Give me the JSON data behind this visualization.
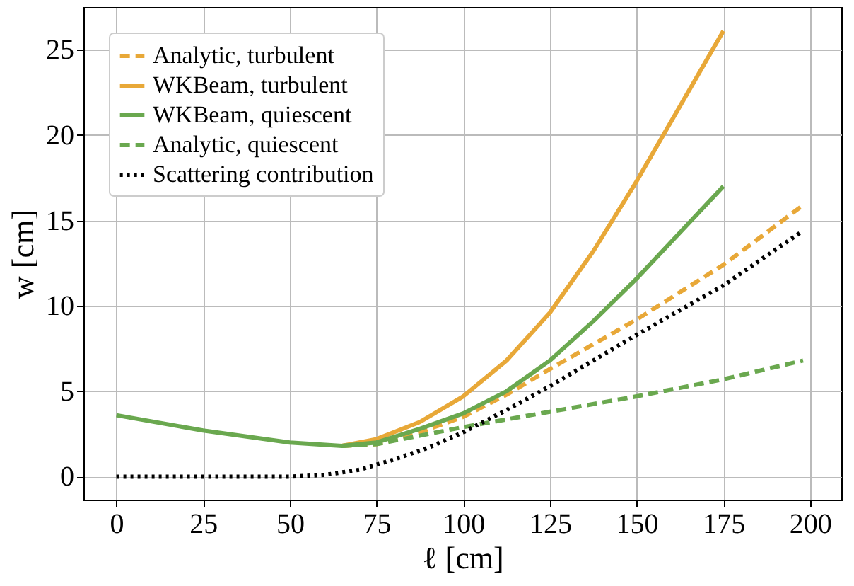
{
  "chart_data": {
    "type": "line",
    "xlabel": "ℓ [cm]",
    "ylabel": "w [cm]",
    "xlim": [
      -9.5,
      209
    ],
    "ylim": [
      -1.35,
      27.5
    ],
    "xticks": [
      0,
      25,
      50,
      75,
      100,
      125,
      150,
      175,
      200
    ],
    "yticks": [
      0,
      5,
      10,
      15,
      20,
      25
    ],
    "grid": true,
    "legend": "top left",
    "marker": "none",
    "series": [
      {
        "name": "Analytic, turbulent",
        "color": "#e8a838",
        "line_style": "dashed",
        "x": [
          65,
          75,
          87.5,
          100,
          112.5,
          125,
          150,
          175,
          198
        ],
        "values": [
          1.8,
          1.9,
          2.6,
          3.5,
          4.8,
          6.3,
          9.2,
          12.4,
          15.9
        ]
      },
      {
        "name": "WKBeam, turbulent",
        "color": "#e8a838",
        "line_style": "solid",
        "x": [
          65,
          75,
          87.5,
          100,
          112.5,
          125,
          137.5,
          150,
          162.5,
          175
        ],
        "values": [
          1.8,
          2.2,
          3.2,
          4.7,
          6.8,
          9.6,
          13.2,
          17.3,
          21.7,
          26.1
        ]
      },
      {
        "name": "WKBeam, quiescent",
        "color": "#6aa84f",
        "line_style": "solid",
        "x": [
          0,
          25,
          50,
          65,
          75,
          87.5,
          100,
          112.5,
          125,
          137.5,
          150,
          162.5,
          175
        ],
        "values": [
          3.6,
          2.7,
          2.0,
          1.8,
          2.0,
          2.8,
          3.7,
          5.0,
          6.8,
          9.1,
          11.6,
          14.3,
          17.0
        ]
      },
      {
        "name": "Analytic, quiescent",
        "color": "#6aa84f",
        "line_style": "dashed",
        "x": [
          65,
          75,
          100,
          125,
          150,
          175,
          198
        ],
        "values": [
          1.8,
          1.9,
          2.9,
          3.8,
          4.7,
          5.7,
          6.8
        ]
      },
      {
        "name": "Scattering contribution",
        "color": "#000000",
        "line_style": "dotted",
        "x": [
          0,
          50,
          60,
          70,
          80,
          90,
          100,
          112.5,
          125,
          150,
          175,
          198
        ],
        "values": [
          0,
          0,
          0.1,
          0.4,
          1.0,
          1.7,
          2.6,
          3.9,
          5.3,
          8.3,
          11.2,
          14.4
        ]
      }
    ]
  }
}
